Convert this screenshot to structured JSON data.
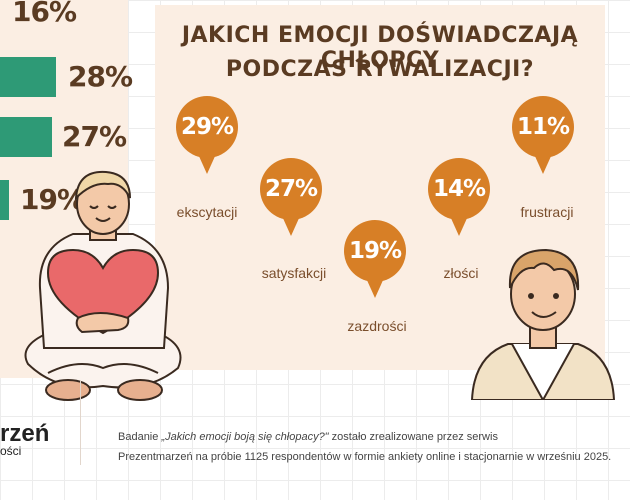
{
  "left_bars": [
    {
      "value": "16%",
      "fill": 0
    },
    {
      "value": "28%",
      "fill": 1
    },
    {
      "value": "27%",
      "fill": 0.92
    },
    {
      "value": "19%",
      "fill": 0.16
    }
  ],
  "title": {
    "line1": "JAKICH EMOCJI DOŚWIADCZAJĄ CHŁOPCY",
    "line2": "PODCZAS RYWALIZACJI?"
  },
  "emotions": [
    {
      "value": "29%",
      "label": "ekscytacji"
    },
    {
      "value": "27%",
      "label": "satysfakcji"
    },
    {
      "value": "19%",
      "label": "zazdrości"
    },
    {
      "value": "14%",
      "label": "złości"
    },
    {
      "value": "11%",
      "label": "frustracji"
    }
  ],
  "logo": {
    "main": "rzeń",
    "sub": "ości"
  },
  "footer": {
    "line1_prefix": "Badanie ",
    "line1_italic": "„Jakich emocji boją się chłopacy?\"",
    "line1_suffix": " zostało zrealizowane przez serwis",
    "line2": "Prezentmarzeń na próbie 1125 respondentów w formie ankiety online i stacjonarnie w wrześniu 2025."
  },
  "colors": {
    "bar": "#2e9a76",
    "bubble": "#d77f26",
    "text": "#5a3b22",
    "panel": "#fbeee3"
  },
  "illustrations": [
    "boy-with-heart-illustration",
    "smiling-boy-illustration"
  ]
}
